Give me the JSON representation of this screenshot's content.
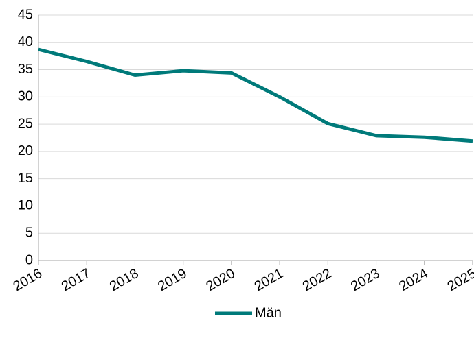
{
  "chart_data": {
    "type": "line",
    "categories": [
      "2016",
      "2017",
      "2018",
      "2019",
      "2020",
      "2021",
      "2022",
      "2023",
      "2024",
      "2025"
    ],
    "series": [
      {
        "name": "Män",
        "color": "#007a7a",
        "values": [
          38.7,
          36.5,
          34.0,
          34.8,
          34.4,
          30.0,
          25.1,
          22.9,
          22.6,
          21.9
        ]
      }
    ],
    "ylim": [
      0,
      45
    ],
    "yticks": [
      0,
      5,
      10,
      15,
      20,
      25,
      30,
      35,
      40,
      45
    ],
    "grid": true,
    "legend": "bottom"
  }
}
